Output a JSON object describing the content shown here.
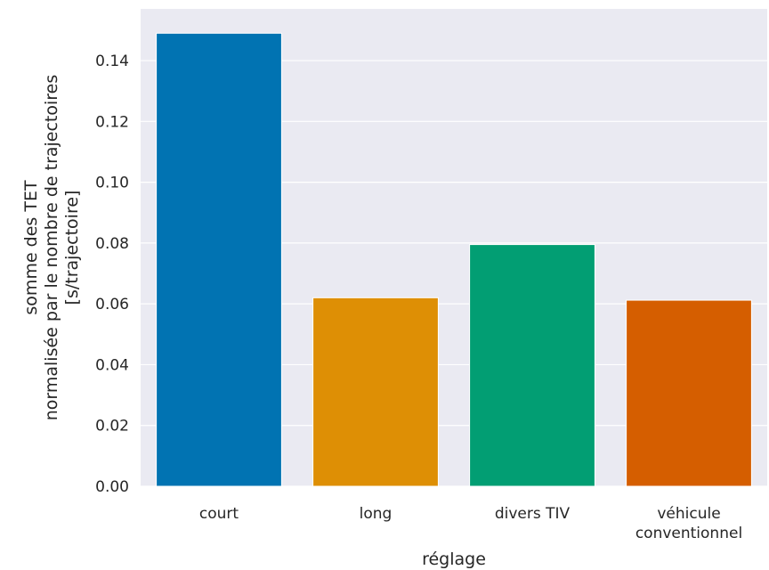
{
  "chart_data": {
    "type": "bar",
    "categories": [
      [
        "court"
      ],
      [
        "long"
      ],
      [
        "divers TIV"
      ],
      [
        "véhicule",
        "conventionnel"
      ]
    ],
    "values": [
      0.149,
      0.062,
      0.0795,
      0.0612
    ],
    "colors": [
      "#0173b2",
      "#de8f05",
      "#029e73",
      "#d55e00"
    ],
    "xlabel": "réglage",
    "ylabel": [
      "somme des TET",
      "normalisée par le nombre de trajectoires",
      "[s/trajectoire]"
    ],
    "ylim": [
      0,
      0.157
    ],
    "yticks": [
      "0.00",
      "0.02",
      "0.04",
      "0.06",
      "0.08",
      "0.10",
      "0.12",
      "0.14"
    ],
    "grid": true,
    "background": "#eaeaf2"
  }
}
